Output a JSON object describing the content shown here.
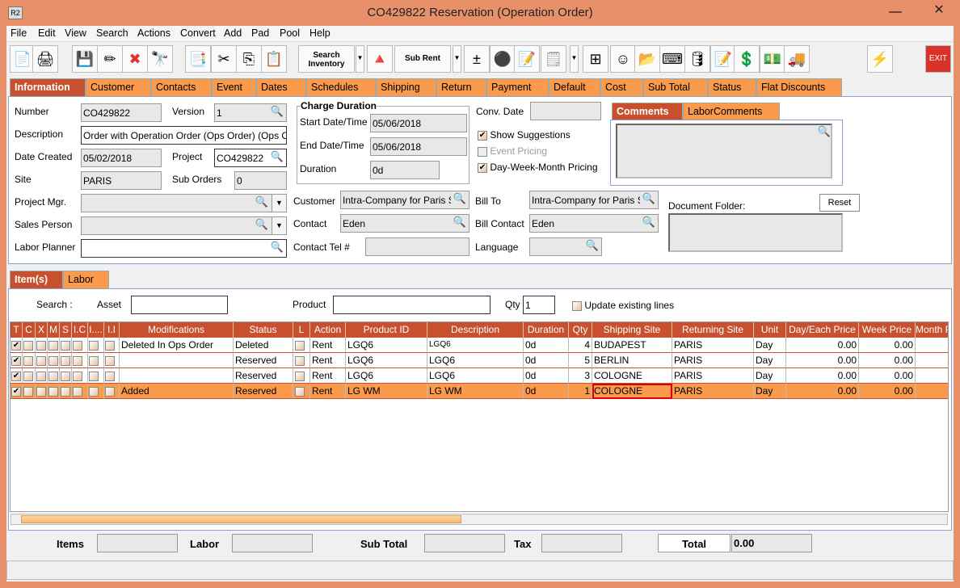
{
  "window": {
    "title": "CO429822 Reservation (Operation Order)",
    "app_icon": "R2"
  },
  "menu": [
    "File",
    "Edit",
    "View",
    "Search",
    "Actions",
    "Convert",
    "Add",
    "Pad",
    "Pool",
    "Help"
  ],
  "toolbar": {
    "search_inventory": "Search Inventory",
    "sub_rent": "Sub Rent",
    "exit": "EXIT",
    "icons": [
      "new-document-icon",
      "print-icon",
      "save-icon",
      "edit-pencil-icon",
      "delete-x-icon",
      "binoculars-icon",
      "copy-order-icon",
      "cut-icon",
      "copy-icon",
      "paste-icon",
      "search-inventory-icon",
      "shapes-icon",
      "sub-rent-icon",
      "add-remove-icon",
      "balls-icon",
      "notepad-icon",
      "disabled-notepad-icon",
      "hierarchy-icon",
      "smiley-icon",
      "folder-clock-icon",
      "key-icon",
      "database-icon",
      "document-edit-icon",
      "money-forward-icon",
      "money-note-icon",
      "truck-icon",
      "lightning-icon",
      "exit-icon"
    ]
  },
  "tabs": [
    "Information",
    "Customer",
    "Contacts",
    "Event",
    "Dates",
    "Schedules",
    "Shipping",
    "Return",
    "Payment",
    "Default",
    "Cost",
    "Sub Total",
    "Status",
    "Flat Discounts"
  ],
  "info": {
    "number_label": "Number",
    "number": "CO429822",
    "version_label": "Version",
    "version": "1",
    "description_label": "Description",
    "description": "Order with Operation Order (Ops Order) (Ops Order)",
    "date_created_label": "Date Created",
    "date_created": "05/02/2018",
    "project_label": "Project",
    "project": "CO429822",
    "site_label": "Site",
    "site": "PARIS",
    "sub_orders_label": "Sub Orders",
    "sub_orders": "0",
    "project_mgr_label": "Project Mgr.",
    "project_mgr": "",
    "sales_person_label": "Sales Person",
    "sales_person": "",
    "labor_planner_label": "Labor Planner",
    "labor_planner": "",
    "charge_duration_label": "Charge Duration",
    "start_label": "Start Date/Time",
    "start": "05/06/2018",
    "end_label": "End Date/Time",
    "end": "05/06/2018",
    "duration_label": "Duration",
    "duration": "0d",
    "conv_date_label": "Conv. Date",
    "conv_date": "",
    "show_suggestions": "Show Suggestions",
    "show_suggestions_checked": true,
    "event_pricing": "Event Pricing",
    "event_pricing_checked": false,
    "dwm_pricing": "Day-Week-Month Pricing",
    "dwm_pricing_checked": true,
    "customer_label": "Customer",
    "customer": "Intra-Company for Paris Site",
    "contact_label": "Contact",
    "contact": "Eden",
    "contact_tel_label": "Contact Tel #",
    "contact_tel": "",
    "bill_to_label": "Bill To",
    "bill_to": "Intra-Company for Paris Site",
    "bill_contact_label": "Bill Contact",
    "bill_contact": "Eden",
    "language_label": "Language",
    "language": "",
    "comments_tabs": [
      "Comments",
      "LaborComments"
    ],
    "comments": "",
    "document_folder_label": "Document Folder:",
    "reset": "Reset"
  },
  "items": {
    "tabs": [
      "Item(s)",
      "Labor"
    ],
    "search_label": "Search :",
    "asset_label": "Asset",
    "asset": "",
    "product_label": "Product",
    "product": "",
    "qty_label": "Qty",
    "qty": "1",
    "update_label": "Update existing lines",
    "columns": [
      "T",
      "C",
      "X",
      "M",
      "S",
      "I.C",
      "I....",
      "I.I",
      "Modifications",
      "Status",
      "L",
      "Action",
      "Product ID",
      "Description",
      "Duration",
      "Qty",
      "Shipping Site",
      "Returning Site",
      "Unit",
      "Day/Each Price",
      "Week Price",
      "Month Price"
    ],
    "rows": [
      {
        "T": true,
        "mod": "Deleted In Ops Order",
        "status": "Deleted",
        "action": "Rent",
        "product": "LGQ6",
        "desc": "LGQ6",
        "duration": "0d",
        "qty": "4",
        "ship": "BUDAPEST",
        "ret": "PARIS",
        "unit": "Day",
        "day": "0.00",
        "week": "0.00",
        "month": ""
      },
      {
        "T": true,
        "mod": "",
        "status": "Reserved",
        "action": "Rent",
        "product": "LGQ6",
        "desc": "LGQ6",
        "duration": "0d",
        "qty": "5",
        "ship": "BERLIN",
        "ret": "PARIS",
        "unit": "Day",
        "day": "0.00",
        "week": "0.00",
        "month": ""
      },
      {
        "T": true,
        "mod": "",
        "status": "Reserved",
        "action": "Rent",
        "product": "LGQ6",
        "desc": "LGQ6",
        "duration": "0d",
        "qty": "3",
        "ship": "COLOGNE",
        "ret": "PARIS",
        "unit": "Day",
        "day": "0.00",
        "week": "0.00",
        "month": ""
      },
      {
        "T": true,
        "mod": "Added",
        "status": "Reserved",
        "action": "Rent",
        "product": "LG WM",
        "desc": "LG WM",
        "duration": "0d",
        "qty": "1",
        "ship": "COLOGNE",
        "ret": "PARIS",
        "unit": "Day",
        "day": "0.00",
        "week": "0.00",
        "month": "",
        "selected": true
      }
    ]
  },
  "totals": {
    "items_label": "Items",
    "items": "",
    "labor_label": "Labor",
    "labor": "",
    "subtotal_label": "Sub Total",
    "subtotal": "",
    "tax_label": "Tax",
    "tax": "",
    "total_label": "Total",
    "total": "0.00"
  },
  "colors": {
    "title_bar": "#e8906a",
    "tab": "#f99a4c",
    "tab_selected": "#c8502e",
    "header": "#c8502e"
  }
}
